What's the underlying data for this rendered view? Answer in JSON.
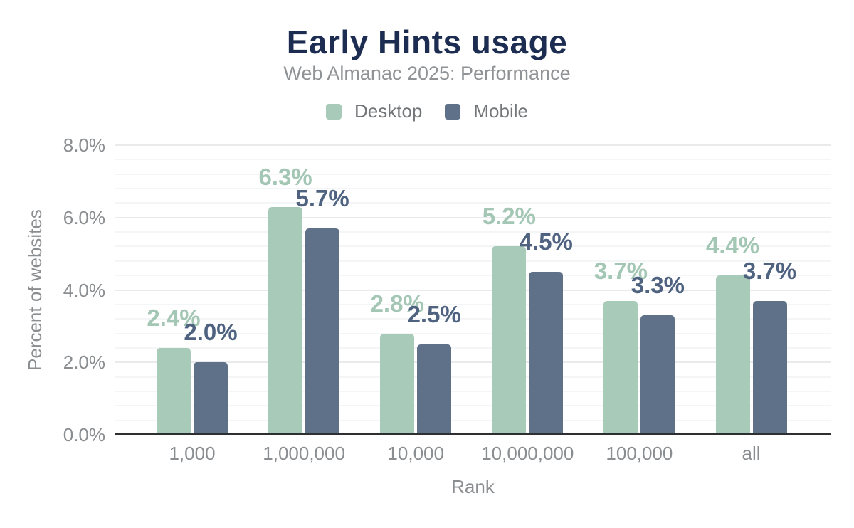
{
  "header": {
    "title": "Early Hints usage",
    "subtitle": "Web Almanac 2025: Performance"
  },
  "legend": {
    "items": [
      {
        "label": "Desktop",
        "color": "#a8cab8"
      },
      {
        "label": "Mobile",
        "color": "#5f7089"
      }
    ]
  },
  "axes": {
    "y_title": "Percent of websites",
    "x_title": "Rank",
    "y_ticks": [
      {
        "value": 0,
        "label": "0.0%"
      },
      {
        "value": 2,
        "label": "2.0%"
      },
      {
        "value": 4,
        "label": "4.0%"
      },
      {
        "value": 6,
        "label": "6.0%"
      },
      {
        "value": 8,
        "label": "8.0%"
      }
    ]
  },
  "chart_data": {
    "type": "bar",
    "title": "Early Hints usage",
    "subtitle": "Web Almanac 2025: Performance",
    "categories": [
      "1,000",
      "1,000,000",
      "10,000",
      "10,000,000",
      "100,000",
      "all"
    ],
    "series": [
      {
        "name": "Desktop",
        "color": "#a8cab8",
        "label_color": "#a3c7b4",
        "values": [
          2.4,
          6.3,
          2.8,
          5.2,
          3.7,
          4.4
        ],
        "labels": [
          "2.4%",
          "6.3%",
          "2.8%",
          "5.2%",
          "3.7%",
          "4.4%"
        ]
      },
      {
        "name": "Mobile",
        "color": "#5f7089",
        "label_color": "#4f6381",
        "values": [
          2.0,
          5.7,
          2.5,
          4.5,
          3.3,
          3.7
        ],
        "labels": [
          "2.0%",
          "5.7%",
          "2.5%",
          "4.5%",
          "3.3%",
          "3.7%"
        ]
      }
    ],
    "xlabel": "Rank",
    "ylabel": "Percent of websites",
    "ylim": [
      0,
      8
    ],
    "ytick_step_major": 2,
    "ytick_step_minor": 0.4,
    "grid": true,
    "legend_position": "top"
  },
  "colors": {
    "title": "#1c2d51",
    "subtitle": "#909396",
    "tick_label": "#8b8e91",
    "axis_line": "#2e2f31",
    "grid_major": "#e8eaeb",
    "grid_minor": "#f4f5f6"
  }
}
